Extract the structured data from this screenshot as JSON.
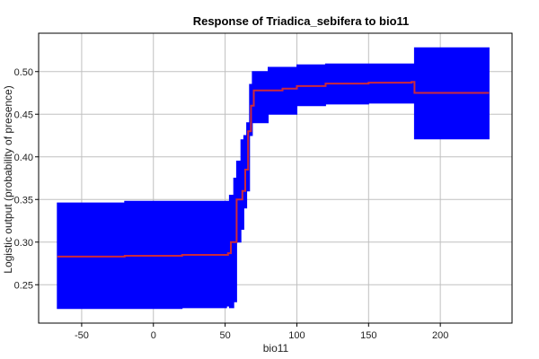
{
  "chart_data": {
    "type": "line",
    "title": "Response of Triadica_sebifera to bio11",
    "xlabel": "bio11",
    "ylabel": "Logistic output (probability of presence)",
    "xlim": [
      -80,
      250
    ],
    "ylim": [
      0.205,
      0.545
    ],
    "xticks": [
      -50,
      0,
      50,
      100,
      150,
      200
    ],
    "xtick_labels": [
      "-50",
      "0",
      "50",
      "100",
      "150",
      "200"
    ],
    "yticks": [
      0.25,
      0.3,
      0.35,
      0.4,
      0.45,
      0.5
    ],
    "ytick_labels": [
      "0.25",
      "0.30",
      "0.35",
      "0.40",
      "0.45",
      "0.50"
    ],
    "grid": true,
    "legend": "none",
    "colors": {
      "band": "#0000ff",
      "line": "#cc2a3c",
      "grid": "#c0c0c0",
      "frame": "#000000"
    },
    "series": [
      {
        "role": "mean",
        "x": [
          -67,
          -20,
          20,
          52,
          54,
          58,
          62,
          64,
          66,
          68,
          70,
          90,
          100,
          120,
          150,
          180,
          182,
          234
        ],
        "y": [
          0.283,
          0.284,
          0.285,
          0.287,
          0.3,
          0.35,
          0.36,
          0.385,
          0.43,
          0.46,
          0.478,
          0.48,
          0.483,
          0.486,
          0.487,
          0.488,
          0.475,
          0.475
        ]
      },
      {
        "role": "band",
        "x": [
          -67,
          -20,
          20,
          51,
          53,
          56,
          58,
          61,
          63,
          65,
          67,
          69,
          80,
          100,
          120,
          150,
          181,
          182,
          234
        ],
        "upper": [
          0.346,
          0.348,
          0.348,
          0.348,
          0.355,
          0.375,
          0.395,
          0.42,
          0.425,
          0.44,
          0.485,
          0.5,
          0.505,
          0.508,
          0.509,
          0.509,
          0.509,
          0.528,
          0.528
        ],
        "lower": [
          0.222,
          0.222,
          0.223,
          0.225,
          0.223,
          0.23,
          0.3,
          0.315,
          0.34,
          0.36,
          0.425,
          0.44,
          0.45,
          0.46,
          0.462,
          0.463,
          0.463,
          0.421,
          0.421
        ]
      }
    ]
  }
}
